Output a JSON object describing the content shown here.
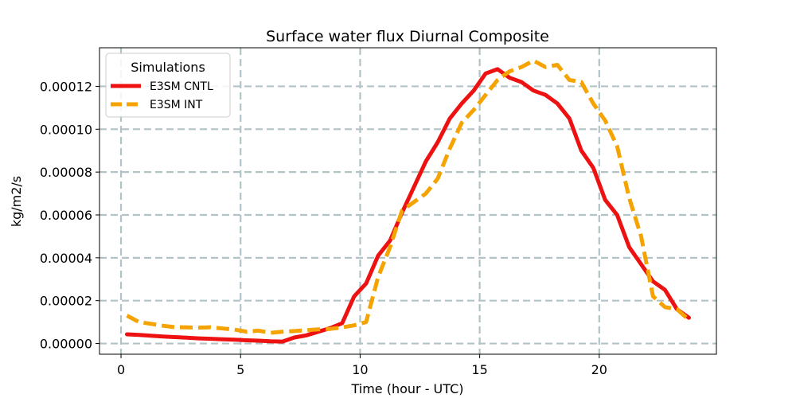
{
  "chart_data": {
    "type": "line",
    "title": "Surface water flux Diurnal Composite",
    "xlabel": "Time (hour - UTC)",
    "ylabel": "kg/m2/s",
    "xlim": [
      -0.9,
      24.9
    ],
    "ylim": [
      -5e-06,
      0.000138
    ],
    "xticks": [
      0,
      5,
      10,
      15,
      20
    ],
    "xtick_labels": [
      "0",
      "5",
      "10",
      "15",
      "20"
    ],
    "yticks": [
      0,
      2e-05,
      4e-05,
      6e-05,
      8e-05,
      0.0001,
      0.00012
    ],
    "ytick_labels": [
      "0.00000",
      "0.00002",
      "0.00004",
      "0.00006",
      "0.00008",
      "0.00010",
      "0.00012"
    ],
    "grid": true,
    "legend": {
      "title": "Simulations",
      "placement": "upper-left"
    },
    "series": [
      {
        "name": "E3SM CNTL",
        "color": "#ee1111",
        "style": "solid",
        "x": [
          0.25,
          0.75,
          1.25,
          1.75,
          2.25,
          2.75,
          3.25,
          3.75,
          4.25,
          4.75,
          5.25,
          5.75,
          6.25,
          6.75,
          7.25,
          7.75,
          8.25,
          8.75,
          9.25,
          9.75,
          10.25,
          10.75,
          11.25,
          11.75,
          12.25,
          12.75,
          13.25,
          13.75,
          14.25,
          14.75,
          15.25,
          15.75,
          16.25,
          16.75,
          17.25,
          17.75,
          18.25,
          18.75,
          19.25,
          19.75,
          20.25,
          20.75,
          21.25,
          21.75,
          22.25,
          22.75,
          23.25,
          23.75
        ],
        "values": [
          4.3e-06,
          4e-06,
          3.6e-06,
          3.3e-06,
          3e-06,
          2.7e-06,
          2.4e-06,
          2.2e-06,
          2e-06,
          1.8e-06,
          1.5e-06,
          1.3e-06,
          1e-06,
          9e-07,
          2.8e-06,
          3.8e-06,
          5.5e-06,
          7.2e-06,
          9.5e-06,
          2.2e-05,
          2.8e-05,
          4.1e-05,
          4.8e-05,
          6.1e-05,
          7.3e-05,
          8.5e-05,
          9.4e-05,
          0.000105,
          0.000112,
          0.000118,
          0.000126,
          0.000128,
          0.000124,
          0.000122,
          0.000118,
          0.000116,
          0.000112,
          0.000105,
          9e-05,
          8.2e-05,
          6.7e-05,
          6e-05,
          4.5e-05,
          3.7e-05,
          2.9e-05,
          2.5e-05,
          1.6e-05,
          1.2e-05
        ]
      },
      {
        "name": "E3SM INT",
        "color": "#f5a300",
        "style": "dashed",
        "x": [
          0.25,
          0.75,
          1.25,
          1.75,
          2.25,
          2.75,
          3.25,
          3.75,
          4.25,
          4.75,
          5.25,
          5.75,
          6.25,
          6.75,
          7.25,
          7.75,
          8.25,
          8.75,
          9.25,
          9.75,
          10.25,
          10.75,
          11.25,
          11.75,
          12.25,
          12.75,
          13.25,
          13.75,
          14.25,
          14.75,
          15.25,
          15.75,
          16.25,
          16.75,
          17.25,
          17.75,
          18.25,
          18.75,
          19.25,
          19.75,
          20.25,
          20.75,
          21.25,
          21.75,
          22.25,
          22.75,
          23.25,
          23.75
        ],
        "values": [
          1.3e-05,
          1e-05,
          9.2e-06,
          8.3e-06,
          7.6e-06,
          7.5e-06,
          7.4e-06,
          7.6e-06,
          7e-06,
          6.5e-06,
          5.5e-06,
          6e-06,
          5e-06,
          5.5e-06,
          5.8e-06,
          6.2e-06,
          6.6e-06,
          6.8e-06,
          7.5e-06,
          8.5e-06,
          1e-05,
          3.1e-05,
          4.5e-05,
          6.2e-05,
          6.6e-05,
          7e-05,
          7.7e-05,
          9.1e-05,
          0.000103,
          0.000109,
          0.000116,
          0.000123,
          0.000127,
          0.000129,
          0.000132,
          0.000129,
          0.00013,
          0.000123,
          0.000122,
          0.000112,
          0.000104,
          9.2e-05,
          6.8e-05,
          5e-05,
          2.2e-05,
          1.7e-05,
          1.6e-05,
          1.1e-05
        ]
      }
    ]
  }
}
